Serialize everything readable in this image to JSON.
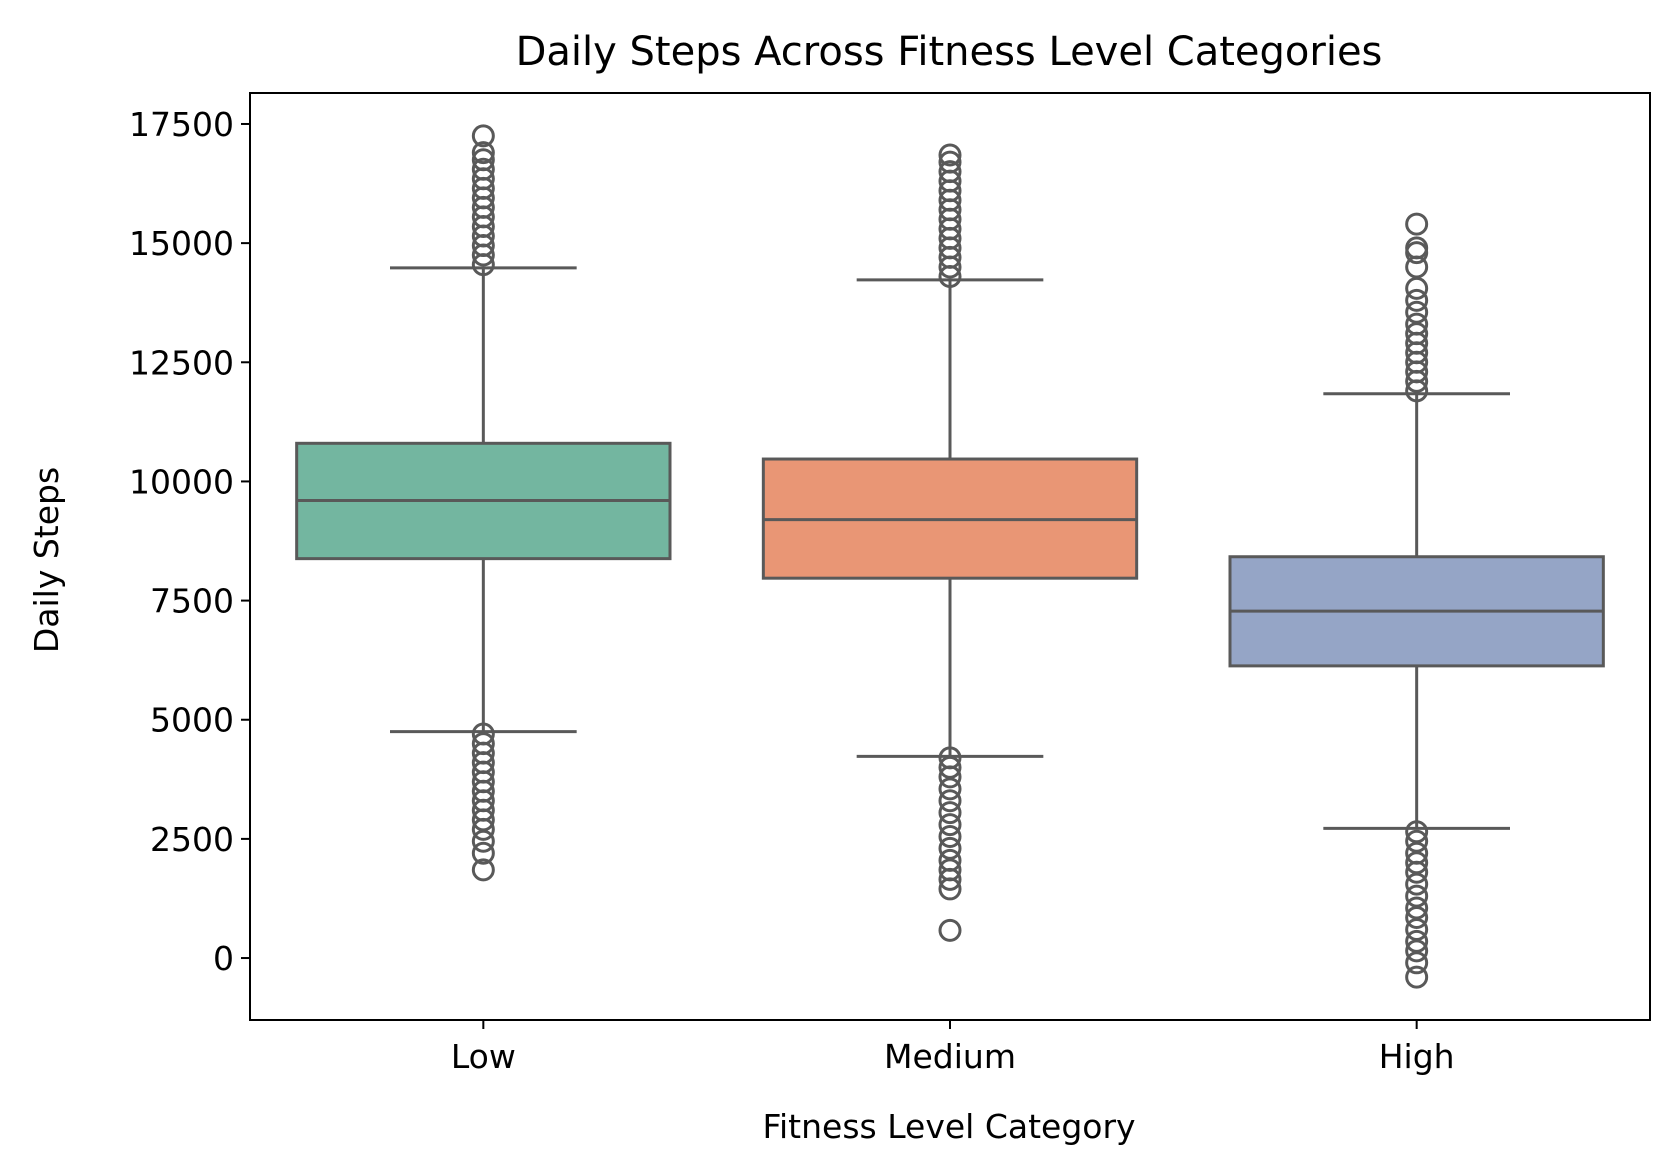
{
  "chart_data": {
    "type": "box",
    "title": "Daily Steps Across Fitness Level Categories",
    "xlabel": "Fitness Level Category",
    "ylabel": "Daily Steps",
    "ylim": [
      -1300,
      18150
    ],
    "yticks": [
      0,
      2500,
      5000,
      7500,
      10000,
      12500,
      15000,
      17500
    ],
    "ytick_labels": [
      "0",
      "2500",
      "5000",
      "7500",
      "10000",
      "12500",
      "15000",
      "17500"
    ],
    "categories": [
      "Low",
      "Medium",
      "High"
    ],
    "grid": false,
    "legend": "none",
    "line_color": "#595959",
    "boxes": [
      {
        "category": "Low",
        "color": "#73b6a0",
        "whisker_low": 4750,
        "q1": 8380,
        "median": 9600,
        "q3": 10800,
        "whisker_high": 14480,
        "outliers_low": [
          1850,
          2200,
          2450,
          2700,
          2900,
          3100,
          3300,
          3500,
          3700,
          3900,
          4100,
          4300,
          4500,
          4700
        ],
        "outliers_high": [
          14550,
          14750,
          14950,
          15150,
          15350,
          15550,
          15750,
          15950,
          16150,
          16350,
          16550,
          16750,
          16900,
          17250
        ]
      },
      {
        "category": "Medium",
        "color": "#e99675",
        "whisker_low": 4230,
        "q1": 7970,
        "median": 9200,
        "q3": 10470,
        "whisker_high": 14230,
        "outliers_low": [
          580,
          1450,
          1650,
          1850,
          2050,
          2300,
          2550,
          2800,
          3050,
          3300,
          3550,
          3800,
          4000,
          4200
        ],
        "outliers_high": [
          14300,
          14500,
          14700,
          14900,
          15100,
          15300,
          15500,
          15700,
          15900,
          16100,
          16300,
          16500,
          16700,
          16850
        ]
      },
      {
        "category": "High",
        "color": "#95a5c6",
        "whisker_low": 2720,
        "q1": 6130,
        "median": 7280,
        "q3": 8420,
        "whisker_high": 11840,
        "outliers_low": [
          -400,
          -100,
          150,
          350,
          600,
          850,
          1050,
          1300,
          1550,
          1800,
          2000,
          2200,
          2450,
          2650
        ],
        "outliers_high": [
          11900,
          12100,
          12300,
          12500,
          12700,
          12900,
          13100,
          13300,
          13550,
          13800,
          14050,
          14500,
          14800,
          14900,
          15400
        ]
      }
    ]
  }
}
